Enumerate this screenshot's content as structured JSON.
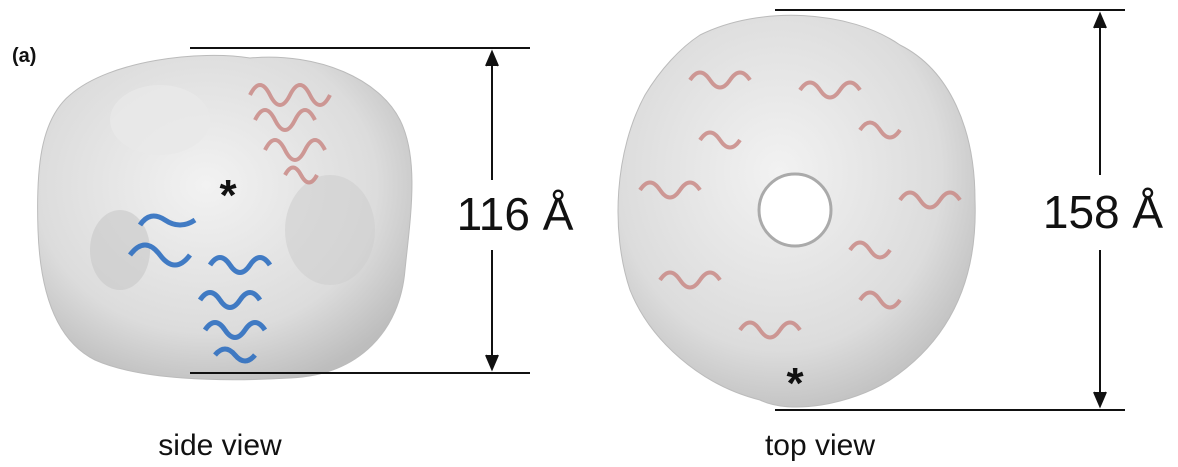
{
  "panel_label": "(a)",
  "panels": [
    {
      "marker": "*",
      "dimension": "116 Å",
      "caption": "side view"
    },
    {
      "marker": "*",
      "dimension": "158 Å",
      "caption": "top view"
    }
  ]
}
